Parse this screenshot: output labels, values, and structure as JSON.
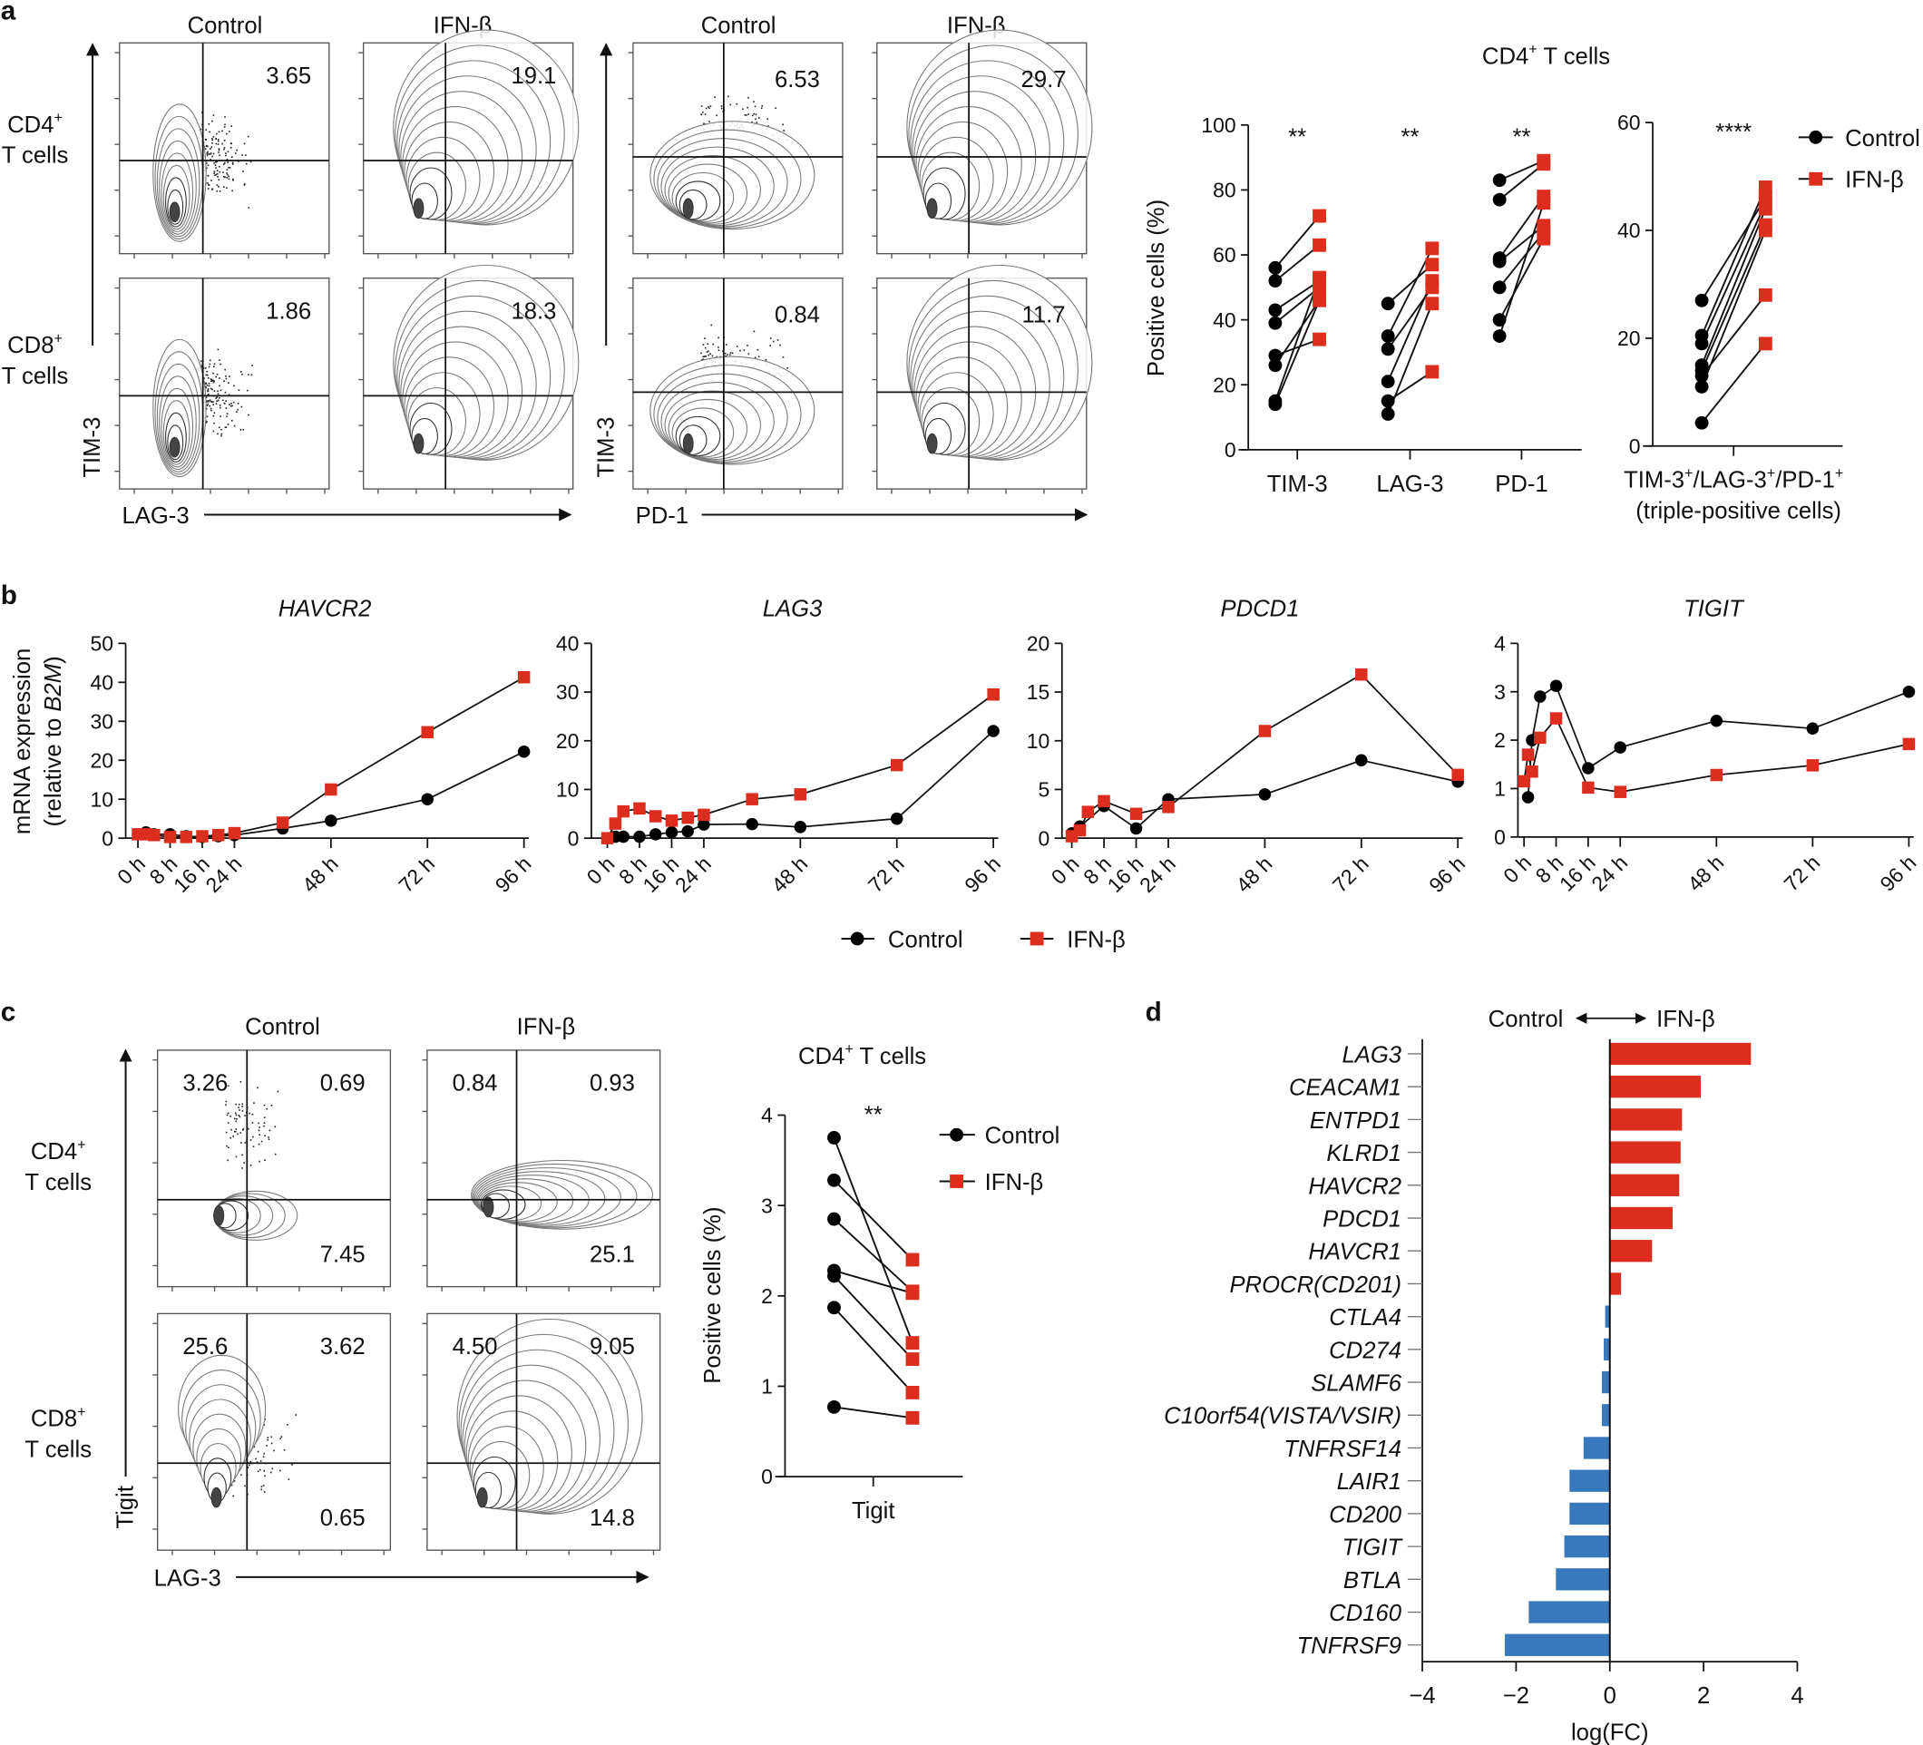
{
  "panel_labels": [
    "a",
    "b",
    "c",
    "d"
  ],
  "colors": {
    "control": "#000000",
    "ifn": "#dc2e1e",
    "down": "#3779bc",
    "contour": "#7a7a7a"
  },
  "panel_a": {
    "column_headers": [
      "Control",
      "IFN-β",
      "Control",
      "IFN-β"
    ],
    "rows": [
      {
        "name": "CD4",
        "sup": "+",
        "line2": "T cells"
      },
      {
        "name": "CD8",
        "sup": "+",
        "line2": "T cells"
      }
    ],
    "y_axis_label": "TIM-3",
    "x_axis_labels": [
      "LAG-3",
      "PD-1"
    ],
    "quadrant_values": {
      "cd4": [
        "3.65",
        "19.1",
        "6.53",
        "29.7"
      ],
      "cd8": [
        "1.86",
        "18.3",
        "0.84",
        "11.7"
      ]
    }
  },
  "panel_b": {
    "ylabel_line1": "mRNA expression",
    "ylabel_prefix": "(relative to ",
    "ylabel_gene": "B2M",
    "ylabel_suffix": ")",
    "legend": [
      "Control",
      "IFN-β"
    ]
  },
  "panel_c": {
    "column_headers": [
      "Control",
      "IFN-β"
    ],
    "rows": [
      {
        "name": "CD4",
        "sup": "+",
        "line2": "T cells"
      },
      {
        "name": "CD8",
        "sup": "+",
        "line2": "T cells"
      }
    ],
    "y_axis_label": "Tigit",
    "x_axis_label": "LAG-3",
    "quadrant_values": {
      "cd4_control": [
        "3.26",
        "0.69",
        "7.45"
      ],
      "cd4_ifn": [
        "0.84",
        "0.93",
        "25.1"
      ],
      "cd8_control": [
        "25.6",
        "3.62",
        "0.65"
      ],
      "cd8_ifn": [
        "4.50",
        "9.05",
        "14.8"
      ]
    }
  },
  "panel_d": {
    "header_left": "Control",
    "header_right": "IFN-β"
  },
  "chart_data": [
    {
      "type": "scatter",
      "title": "CD4",
      "title_sup": "+",
      "title_suffix": " T cells",
      "ylabel": "Positive cells (%)",
      "ylim": [
        0,
        100
      ],
      "yticks": [
        "0",
        "20",
        "40",
        "60",
        "80",
        "100"
      ],
      "categories": [
        "TIM-3",
        "LAG-3",
        "PD-1"
      ],
      "significance": [
        "**",
        "**",
        "**"
      ],
      "series": [
        {
          "name": "Control",
          "values": [
            [
              56,
              52,
              43,
              39,
              29,
              26,
              15,
              14
            ],
            [
              45,
              35,
              31,
              21,
              15,
              11
            ],
            [
              83,
              77,
              59,
              58,
              50,
              40,
              35
            ]
          ]
        },
        {
          "name": "IFN-β",
          "values": [
            [
              72,
              63,
              52,
              50,
              34,
              46,
              53,
              46
            ],
            [
              57,
              62,
              50,
              52,
              24,
              45
            ],
            [
              89,
              88,
              78,
              69,
              67,
              65,
              76
            ]
          ]
        }
      ]
    },
    {
      "type": "scatter",
      "ylim": [
        0,
        60
      ],
      "yticks": [
        "0",
        "20",
        "40",
        "60"
      ],
      "xlabel_parts": [
        {
          "text": "TIM-3",
          "sup": "+"
        },
        {
          "text": "/LAG-3",
          "sup": "+"
        },
        {
          "text": "/PD-1",
          "sup": "+"
        }
      ],
      "xlabel_line2": "(triple-positive cells)",
      "significance": [
        "****"
      ],
      "legend_placement": "top-right",
      "series": [
        {
          "name": "Control",
          "values": [
            27,
            20.5,
            19,
            15,
            14,
            13,
            11,
            4.3
          ]
        },
        {
          "name": "IFN-β",
          "values": [
            46,
            48,
            45,
            44,
            41,
            28,
            40,
            19
          ]
        }
      ]
    },
    {
      "type": "line",
      "title": "HAVCR2",
      "ylim": [
        0,
        50
      ],
      "yticks": [
        "0",
        "10",
        "20",
        "30",
        "40",
        "50"
      ],
      "xticks": [
        0,
        8,
        16,
        24,
        48,
        72,
        96
      ],
      "xtick_labels": [
        "0 h",
        "8 h",
        "16 h",
        "24 h",
        "48 h",
        "72 h",
        "96 h"
      ],
      "series": [
        {
          "name": "Control",
          "x": [
            0,
            2,
            4,
            8,
            12,
            16,
            20,
            24,
            36,
            48,
            72,
            96
          ],
          "values": [
            1,
            1.5,
            1,
            1,
            0.5,
            0.3,
            0.5,
            0.8,
            2.5,
            4.5,
            10,
            22.2
          ]
        },
        {
          "name": "IFN-β",
          "x": [
            0,
            2,
            4,
            8,
            12,
            16,
            20,
            24,
            36,
            48,
            72,
            96
          ],
          "values": [
            1,
            1,
            0.8,
            0.3,
            0.3,
            0.5,
            0.8,
            1.3,
            4,
            12.5,
            27.2,
            41.3
          ]
        }
      ]
    },
    {
      "type": "line",
      "title": "LAG3",
      "ylim": [
        0,
        40
      ],
      "yticks": [
        "0",
        "10",
        "20",
        "30",
        "40"
      ],
      "xticks": [
        0,
        8,
        16,
        24,
        48,
        72,
        96
      ],
      "xtick_labels": [
        "0 h",
        "8 h",
        "16 h",
        "24 h",
        "48 h",
        "72 h",
        "96 h"
      ],
      "series": [
        {
          "name": "Control",
          "x": [
            0,
            2,
            4,
            8,
            12,
            16,
            20,
            24,
            36,
            48,
            72,
            96
          ],
          "values": [
            0,
            0.3,
            0.3,
            0.3,
            0.8,
            1.2,
            1.4,
            2.8,
            2.9,
            2.3,
            4,
            22
          ]
        },
        {
          "name": "IFN-β",
          "x": [
            0,
            2,
            4,
            8,
            12,
            16,
            20,
            24,
            36,
            48,
            72,
            96
          ],
          "values": [
            0,
            3,
            5.5,
            6.1,
            4.5,
            3.6,
            4.2,
            4.8,
            8,
            9,
            15,
            29.5
          ]
        }
      ]
    },
    {
      "type": "line",
      "title": "PDCD1",
      "ylim": [
        0,
        20
      ],
      "yticks": [
        "0",
        "5",
        "10",
        "15",
        "20"
      ],
      "xticks": [
        0,
        8,
        16,
        24,
        48,
        72,
        96
      ],
      "xtick_labels": [
        "0 h",
        "8 h",
        "16 h",
        "24 h",
        "48 h",
        "72 h",
        "96 h"
      ],
      "series": [
        {
          "name": "Control",
          "x": [
            0,
            2,
            8,
            16,
            24,
            48,
            72,
            96
          ],
          "values": [
            0.5,
            1.2,
            3.3,
            1,
            4,
            4.5,
            8,
            5.8
          ]
        },
        {
          "name": "IFN-β",
          "x": [
            0,
            2,
            4,
            8,
            16,
            24,
            48,
            72,
            96
          ],
          "values": [
            0.2,
            0.8,
            2.7,
            3.8,
            2.5,
            3.2,
            11,
            16.8,
            6.5
          ]
        }
      ]
    },
    {
      "type": "line",
      "title": "TIGIT",
      "ylim": [
        0,
        4
      ],
      "yticks": [
        "0",
        "1",
        "2",
        "3",
        "4"
      ],
      "xticks": [
        0,
        8,
        16,
        24,
        48,
        72,
        96
      ],
      "xtick_labels": [
        "0 h",
        "8 h",
        "16 h",
        "24 h",
        "48 h",
        "72 h",
        "96 h"
      ],
      "series": [
        {
          "name": "Control",
          "x": [
            1,
            2,
            4,
            8,
            16,
            24,
            48,
            72,
            96
          ],
          "values": [
            0.82,
            2.0,
            2.9,
            3.12,
            1.42,
            1.85,
            2.4,
            2.24,
            3.0
          ]
        },
        {
          "name": "IFN-β",
          "x": [
            0,
            1,
            2,
            4,
            8,
            16,
            24,
            48,
            72,
            96
          ],
          "values": [
            1.15,
            1.7,
            1.35,
            2.05,
            2.45,
            1.02,
            0.93,
            1.28,
            1.48,
            1.92
          ]
        }
      ]
    },
    {
      "type": "scatter",
      "title": "CD4",
      "title_sup": "+",
      "title_suffix": " T cells",
      "ylabel": "Positive cells (%)",
      "ylim": [
        0,
        4
      ],
      "yticks": [
        "0",
        "1",
        "2",
        "3",
        "4"
      ],
      "categories": [
        "Tigit"
      ],
      "significance": [
        "**"
      ],
      "legend_placement": "top-right",
      "series": [
        {
          "name": "Control",
          "values": [
            3.75,
            3.28,
            2.85,
            2.28,
            2.22,
            1.87,
            0.77
          ]
        },
        {
          "name": "IFN-β",
          "values": [
            1.48,
            2.4,
            2.05,
            2.03,
            1.3,
            0.93,
            0.65
          ]
        }
      ]
    },
    {
      "type": "bar",
      "orientation": "horizontal",
      "xlabel": "log(FC)",
      "xlim": [
        -4,
        4
      ],
      "xticks": [
        "−4",
        "−2",
        "0",
        "2",
        "4"
      ],
      "categories": [
        "LAG3",
        "CEACAM1",
        "ENTPD1",
        "KLRD1",
        "HAVCR2",
        "PDCD1",
        "HAVCR1",
        "PROCR(CD201)",
        "CTLA4",
        "CD274",
        "SLAMF6",
        "C10orf54(VISTA/VSIR)",
        "TNFRSF14",
        "LAIR1",
        "CD200",
        "TIGIT",
        "BTLA",
        "CD160",
        "TNFRSF9"
      ],
      "values": [
        3.01,
        1.94,
        1.54,
        1.51,
        1.48,
        1.34,
        0.9,
        0.24,
        -0.1,
        -0.13,
        -0.17,
        -0.17,
        -0.56,
        -0.86,
        -0.86,
        -0.97,
        -1.15,
        -1.73,
        -2.24
      ]
    }
  ]
}
